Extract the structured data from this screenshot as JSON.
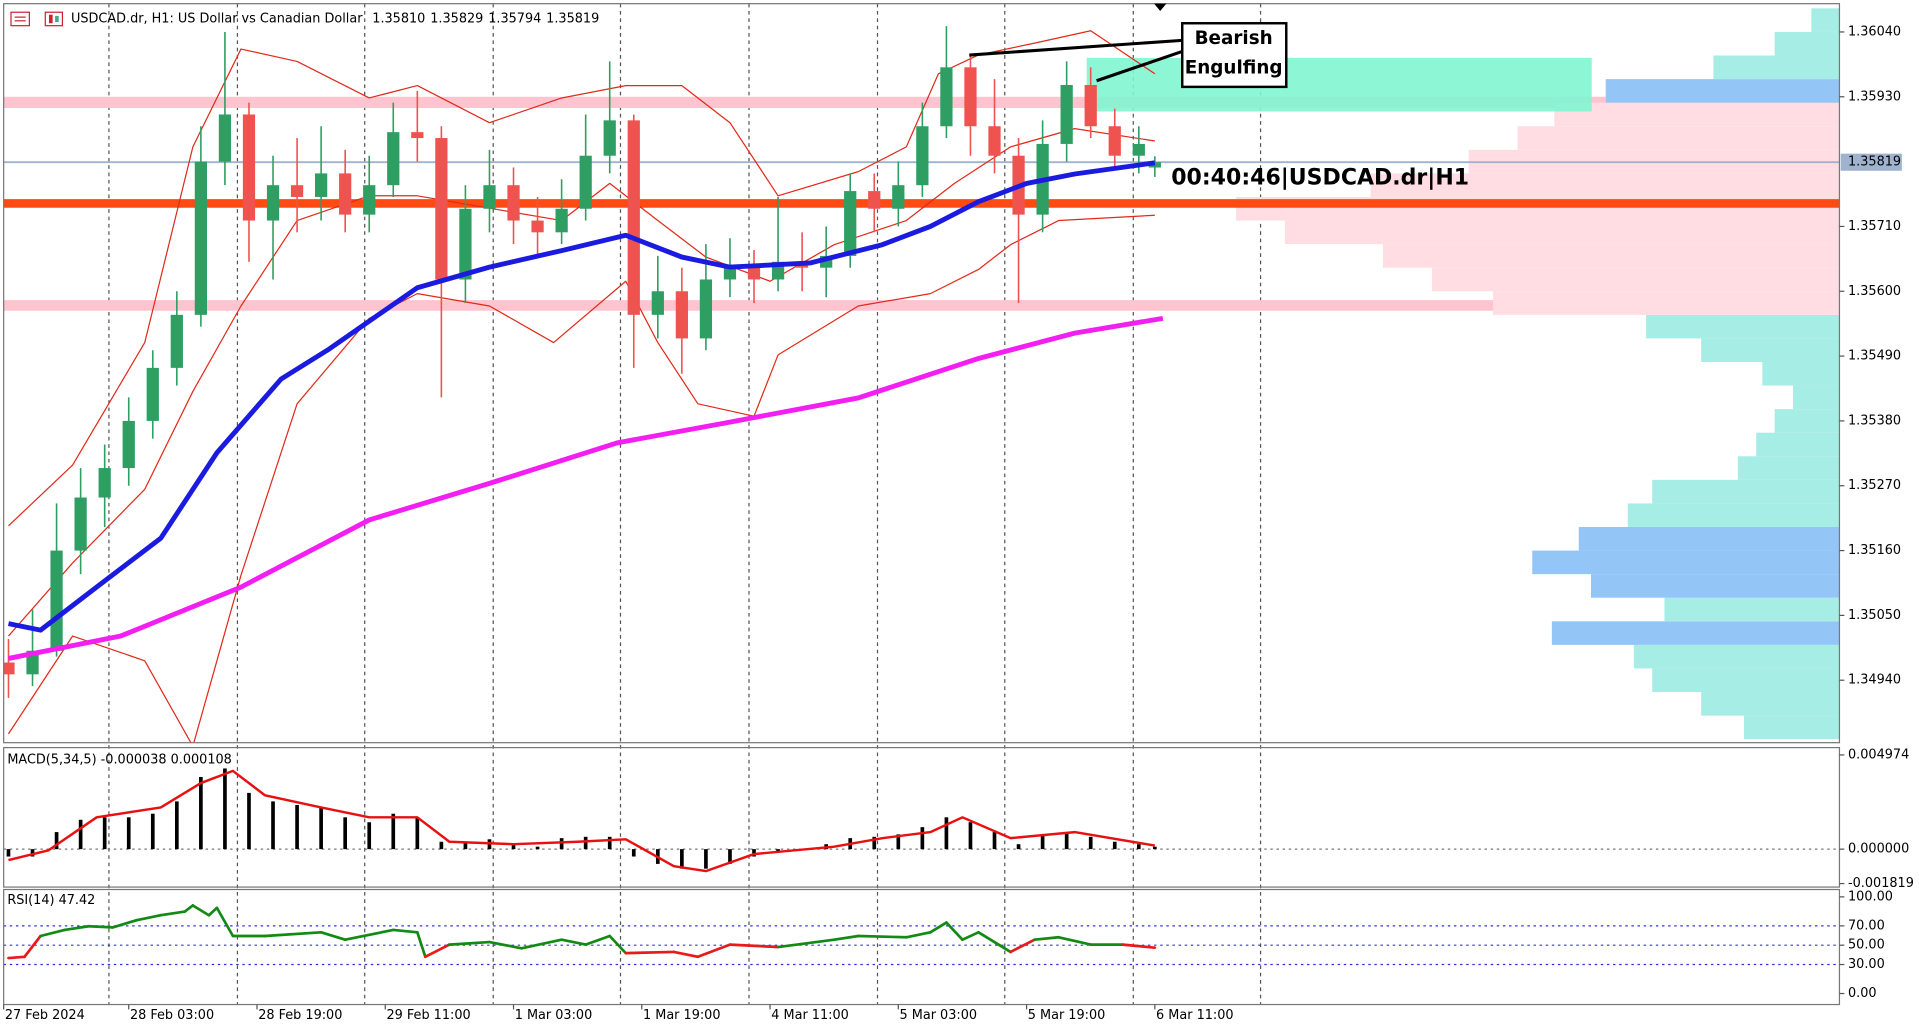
{
  "chart_data": [
    {
      "type": "candlestick",
      "title": "USDCAD.dr, H1:  US Dollar vs Canadian Dollar",
      "ohlc": [
        1.3581,
        1.35829,
        1.35794,
        1.35819
      ],
      "ohlc_labels": [
        "1.35810",
        "1.35829",
        "1.35794",
        "1.35819"
      ],
      "up_color": "#2e9e63",
      "down_color": "#ef5350",
      "xlim": [
        -0.6,
        228.4
      ],
      "ylim": [
        1.34834,
        1.36088
      ],
      "yticks": [
        {
          "value": 1.3604,
          "label": "1.36040"
        },
        {
          "value": 1.3593,
          "label": "1.35930"
        },
        {
          "value": 1.3571,
          "label": "1.35710"
        },
        {
          "value": 1.356,
          "label": "1.35600"
        },
        {
          "value": 1.3549,
          "label": "1.35490"
        },
        {
          "value": 1.3538,
          "label": "1.35380"
        },
        {
          "value": 1.3527,
          "label": "1.35270"
        },
        {
          "value": 1.3516,
          "label": "1.35160"
        },
        {
          "value": 1.3505,
          "label": "1.35050"
        },
        {
          "value": 1.3494,
          "label": "1.34940"
        }
      ],
      "xticks": [
        {
          "value": -0.6,
          "label": "27 Feb 2024"
        },
        {
          "value": 15,
          "label": "28 Feb 03:00"
        },
        {
          "value": 31,
          "label": "28 Feb 19:00"
        },
        {
          "value": 47,
          "label": "29 Feb 11:00"
        },
        {
          "value": 63,
          "label": "1 Mar 03:00"
        },
        {
          "value": 79,
          "label": "1 Mar 19:00"
        },
        {
          "value": 95,
          "label": "4 Mar 11:00"
        },
        {
          "value": 111,
          "label": "5 Mar 03:00"
        },
        {
          "value": 127,
          "label": "5 Mar 19:00"
        },
        {
          "value": 143,
          "label": "6 Mar 11:00"
        }
      ],
      "x": [
        0,
        3,
        6,
        9,
        12,
        15,
        18,
        21,
        24,
        27,
        30,
        33,
        36,
        39,
        42,
        45,
        48,
        51,
        54,
        57,
        60,
        63,
        66,
        69,
        72,
        75,
        78,
        81,
        84,
        87,
        90,
        93,
        96,
        99,
        102,
        105,
        108,
        111,
        114,
        117,
        120,
        123,
        126,
        129,
        132,
        135,
        138,
        141,
        143
      ],
      "open": [
        1.3497,
        1.3495,
        1.3499,
        1.3516,
        1.3525,
        1.353,
        1.3538,
        1.3547,
        1.3556,
        1.3582,
        1.359,
        1.3572,
        1.3578,
        1.3576,
        1.358,
        1.3573,
        1.3578,
        1.3587,
        1.3586,
        1.3562,
        1.3574,
        1.3578,
        1.3572,
        1.357,
        1.3574,
        1.3583,
        1.3589,
        1.3556,
        1.356,
        1.3552,
        1.3562,
        1.3564,
        1.3562,
        1.3565,
        1.3564,
        1.3566,
        1.3577,
        1.3574,
        1.3578,
        1.3588,
        1.3598,
        1.3588,
        1.3583,
        1.3573,
        1.3585,
        1.3595,
        1.3588,
        1.3583,
        1.3581
      ],
      "high": [
        1.3501,
        1.3506,
        1.3524,
        1.353,
        1.3534,
        1.3542,
        1.355,
        1.356,
        1.3588,
        1.3604,
        1.3592,
        1.3583,
        1.3586,
        1.3588,
        1.3584,
        1.3583,
        1.3592,
        1.3594,
        1.3588,
        1.3578,
        1.3584,
        1.3581,
        1.3576,
        1.3579,
        1.359,
        1.3599,
        1.359,
        1.3566,
        1.3564,
        1.3568,
        1.3569,
        1.3567,
        1.3576,
        1.357,
        1.3571,
        1.358,
        1.358,
        1.3582,
        1.3592,
        1.3605,
        1.36,
        1.3596,
        1.3586,
        1.3589,
        1.3599,
        1.3598,
        1.3591,
        1.3588,
        1.35829
      ],
      "low": [
        1.3491,
        1.3493,
        1.3498,
        1.3512,
        1.352,
        1.3527,
        1.3535,
        1.3544,
        1.3554,
        1.3578,
        1.3565,
        1.3562,
        1.357,
        1.3572,
        1.357,
        1.357,
        1.3576,
        1.3582,
        1.3542,
        1.3558,
        1.357,
        1.3568,
        1.3566,
        1.3568,
        1.3572,
        1.358,
        1.3547,
        1.3552,
        1.3546,
        1.355,
        1.3559,
        1.3558,
        1.356,
        1.356,
        1.3559,
        1.3564,
        1.357,
        1.3571,
        1.3576,
        1.3586,
        1.3583,
        1.358,
        1.3558,
        1.357,
        1.3582,
        1.3586,
        1.3581,
        1.358,
        1.35794
      ],
      "close": [
        1.3495,
        1.3499,
        1.3516,
        1.3525,
        1.353,
        1.3538,
        1.3547,
        1.3556,
        1.3582,
        1.359,
        1.3572,
        1.3578,
        1.3576,
        1.358,
        1.3573,
        1.3578,
        1.3587,
        1.3586,
        1.3562,
        1.3574,
        1.3578,
        1.3572,
        1.357,
        1.3574,
        1.3583,
        1.3589,
        1.3556,
        1.356,
        1.3552,
        1.3562,
        1.3564,
        1.3562,
        1.3565,
        1.3564,
        1.3566,
        1.3577,
        1.3574,
        1.3578,
        1.3588,
        1.3598,
        1.3588,
        1.3583,
        1.3573,
        1.3585,
        1.3595,
        1.3588,
        1.3583,
        1.3585,
        1.35819
      ],
      "bands": [
        {
          "color": "#e02a1a",
          "x": [
            0,
            8,
            17,
            23,
            29,
            36,
            45,
            51,
            60,
            69,
            77,
            84,
            90,
            96,
            106,
            112,
            116,
            121,
            128,
            135,
            143
          ],
          "values": [
            1.35202,
            1.35305,
            1.35513,
            1.35845,
            1.36011,
            1.3599,
            1.35928,
            1.35949,
            1.35886,
            1.35928,
            1.35949,
            1.35949,
            1.35886,
            1.35762,
            1.35803,
            1.35845,
            1.35969,
            1.36001,
            1.36021,
            1.36042,
            1.35969
          ]
        },
        {
          "color": "#e02a1a",
          "x": [
            0,
            8,
            17,
            23,
            29,
            36,
            45,
            51,
            60,
            69,
            75,
            81,
            87,
            95,
            103,
            112,
            118,
            125,
            133,
            143
          ],
          "values": [
            1.35015,
            1.35139,
            1.35264,
            1.3543,
            1.35575,
            1.3572,
            1.35762,
            1.35762,
            1.35741,
            1.3572,
            1.35783,
            1.3572,
            1.35658,
            1.35617,
            1.35679,
            1.3572,
            1.35783,
            1.35845,
            1.35876,
            1.35855
          ]
        },
        {
          "color": "#e02a1a",
          "x": [
            0,
            8,
            17,
            23,
            29,
            36,
            45,
            51,
            60,
            68,
            77,
            81,
            86,
            93,
            96,
            106,
            115,
            121,
            125,
            131,
            143
          ],
          "values": [
            1.34849,
            1.35015,
            1.34973,
            1.34828,
            1.35118,
            1.35409,
            1.35554,
            1.35596,
            1.35575,
            1.35513,
            1.35617,
            1.35513,
            1.35409,
            1.35388,
            1.35492,
            1.35575,
            1.35596,
            1.35637,
            1.35679,
            1.3572,
            1.35729
          ]
        }
      ],
      "averages": [
        {
          "color": "#1b1be0",
          "x": [
            0,
            4,
            11,
            19,
            26,
            34,
            40,
            51,
            60,
            69,
            77,
            84,
            90,
            100,
            109,
            115,
            121,
            127,
            133,
            143
          ],
          "values": [
            1.35036,
            1.35025,
            1.35098,
            1.35181,
            1.35326,
            1.35451,
            1.35502,
            1.35606,
            1.35641,
            1.35669,
            1.35695,
            1.35658,
            1.35641,
            1.35648,
            1.35679,
            1.3571,
            1.35752,
            1.35783,
            1.35799,
            1.35818
          ]
        },
        {
          "color": "#f21ef2",
          "x": [
            0,
            14,
            29,
            45,
            60,
            76,
            90,
            106,
            121,
            133,
            144
          ],
          "values": [
            1.34977,
            1.35015,
            1.35098,
            1.35212,
            1.35274,
            1.35343,
            1.35378,
            1.35419,
            1.35486,
            1.35529,
            1.35554
          ]
        }
      ],
      "zones": [
        {
          "from": 1.35911,
          "to": 1.3593,
          "color": "#ffc4cf"
        },
        {
          "from": 1.35567,
          "to": 1.35585,
          "color": "#ffc4cf"
        }
      ],
      "level": {
        "value": 1.35749,
        "color": "#ff4a12"
      },
      "box": {
        "x_from": 134.5,
        "x_to": 197.5,
        "from": 1.35905,
        "to": 1.35996,
        "color": "#80f5d0"
      },
      "last_price": {
        "value": 1.35819,
        "label": "1.35819",
        "color": "#9fb3cf"
      },
      "volume_profile": {
        "xlim": [
          0,
          500
        ],
        "bins": [
          1.3484,
          1.3488,
          1.3492,
          1.3496,
          1.35,
          1.3504,
          1.3508,
          1.3512,
          1.3516,
          1.352,
          1.3524,
          1.3528,
          1.3532,
          1.3536,
          1.354,
          1.3544,
          1.3548,
          1.3552,
          1.3556,
          1.356,
          1.3564,
          1.3568,
          1.3572,
          1.3576,
          1.358,
          1.3584,
          1.3588,
          1.3592,
          1.3596,
          1.36,
          1.3604,
          1.3608
        ],
        "values": [
          78,
          113,
          153,
          168,
          235,
          143,
          203,
          251,
          213,
          173,
          153,
          83,
          68,
          53,
          38,
          63,
          113,
          158,
          283,
          333,
          373,
          453,
          493,
          383,
          303,
          263,
          233,
          191,
          103,
          53,
          23
        ],
        "colors": [
          "#a6ede6",
          "#a6ede6",
          "#a6ede6",
          "#a6ede6",
          "#93c5f7",
          "#a6ede6",
          "#93c5f7",
          "#93c5f7",
          "#93c5f7",
          "#a6ede6",
          "#a6ede6",
          "#a6ede6",
          "#a6ede6",
          "#a6ede6",
          "#a6ede6",
          "#a6ede6",
          "#a6ede6",
          "#a6ede6",
          "#ffdde3",
          "#ffdde3",
          "#ffdde3",
          "#ffdde3",
          "#ffdde3",
          "#ffdde3",
          "#ffdde3",
          "#ffdde3",
          "#ffdde3",
          "#93c5f7",
          "#a6ede6",
          "#a6ede6",
          "#a6ede6"
        ]
      },
      "annotation": [
        "Bearish",
        "Engulfing"
      ],
      "countdown": "00:40:46|USDCAD.dr|H1"
    },
    {
      "type": "macd",
      "title": "MACD(5,34,5) -0.000038 0.000108",
      "color": "#000000",
      "signal_color": "#e81010",
      "xlim": [
        -0.6,
        228.4
      ],
      "ylim": [
        -0.002003,
        0.005362
      ],
      "yticks": [
        0.004974,
        {
          "value": 0,
          "label": "0.000000"
        },
        -0.001819
      ],
      "levels": [
        0
      ],
      "x": [
        0,
        3,
        6,
        9,
        12,
        15,
        18,
        21,
        24,
        27,
        30,
        33,
        36,
        39,
        42,
        45,
        48,
        51,
        54,
        57,
        60,
        63,
        66,
        69,
        72,
        75,
        78,
        81,
        84,
        87,
        90,
        93,
        96,
        99,
        102,
        105,
        108,
        111,
        114,
        117,
        120,
        123,
        126,
        129,
        132,
        135,
        138,
        141,
        143
      ],
      "values": [
        -0.00039,
        -0.00039,
        0.0009,
        0.00155,
        0.00168,
        0.00168,
        0.00187,
        0.00252,
        0.00381,
        0.00426,
        0.00297,
        0.00252,
        0.00233,
        0.0022,
        0.00168,
        0.00142,
        0.00187,
        0.00168,
        0.00039,
        0.00039,
        0.00052,
        0.00026,
        0.00013,
        0.00058,
        0.00065,
        0.00065,
        -0.00039,
        -0.00078,
        -0.00103,
        -0.00103,
        -0.00078,
        -0.00039,
        -0.00013,
        0,
        0.00026,
        0.00058,
        0.00065,
        0.00078,
        0.00116,
        0.00168,
        0.00142,
        0.0009,
        0.00026,
        0.00078,
        0.0009,
        0.00065,
        0.00039,
        0.00026,
        0.00013
      ],
      "signal_x": [
        0,
        5,
        11,
        19,
        24,
        28,
        32,
        39,
        45,
        51,
        55,
        63,
        71,
        77,
        83,
        87,
        93,
        103,
        109,
        115,
        119,
        125,
        133,
        143
      ],
      "signal": [
        -0.00058,
        -6e-05,
        0.00168,
        0.0022,
        0.00349,
        0.00413,
        0.00284,
        0.0022,
        0.00168,
        0.00168,
        0.00039,
        0.00026,
        0.00039,
        0.00052,
        -0.0009,
        -0.00116,
        -0.00026,
        0.00013,
        0.00058,
        0.0009,
        0.00168,
        0.00058,
        0.0009,
        0.00019
      ]
    },
    {
      "type": "rsi",
      "title": "RSI(14) 47.42",
      "above_color": "#138a13",
      "below_color": "#e81a1a",
      "split": 50,
      "level_color": "#3030e8",
      "xlim": [
        -0.6,
        228.4
      ],
      "ylim": [
        -11.4,
        107.6
      ],
      "yticks": [
        {
          "value": 100,
          "label": "100.00"
        },
        {
          "value": 70,
          "label": "70.00"
        },
        {
          "value": 50,
          "label": "50.00"
        },
        {
          "value": 30,
          "label": "30.00"
        },
        {
          "value": 0,
          "label": "0.00"
        }
      ],
      "levels": [
        70,
        50,
        30
      ],
      "x": [
        0,
        2,
        4,
        7,
        10,
        13,
        16,
        19,
        22,
        23,
        25,
        26,
        28,
        32,
        39,
        42,
        48,
        51,
        52,
        55,
        60,
        64,
        69,
        72,
        75,
        77,
        83,
        86,
        90,
        96,
        103,
        106,
        112,
        115,
        117,
        119,
        121,
        125,
        128,
        131,
        135,
        139,
        143
      ],
      "values": [
        36.7,
        38,
        59.5,
        65.8,
        69.6,
        68.4,
        75.9,
        81,
        84.8,
        91.1,
        81,
        88.6,
        59.5,
        59.5,
        63.3,
        55.7,
        65.8,
        63.3,
        38,
        50.6,
        53.2,
        46.8,
        55.7,
        50.6,
        59.5,
        41.8,
        43,
        38,
        50.6,
        48.1,
        55.7,
        59.5,
        58.2,
        63.3,
        73.4,
        55.7,
        63.3,
        43,
        55.7,
        58.2,
        50.6,
        50.6,
        47.42
      ]
    }
  ]
}
